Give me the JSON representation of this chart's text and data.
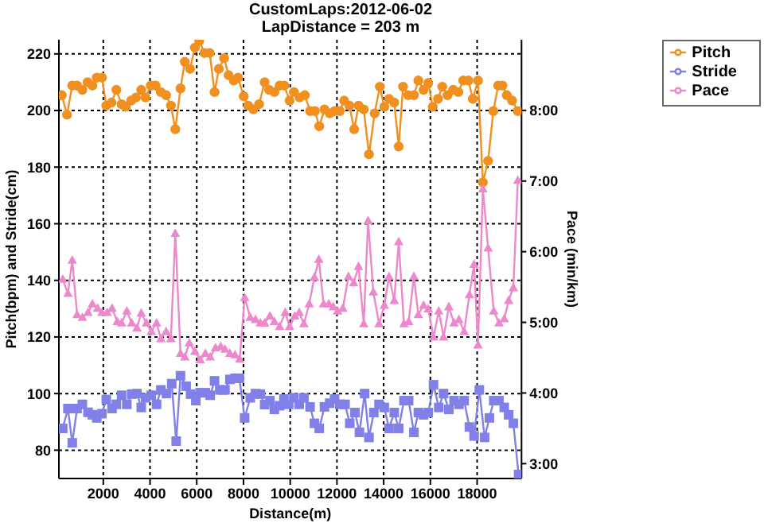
{
  "chart_data": {
    "type": "line",
    "title": "CustomLaps:2012-06-02",
    "subtitle": "LapDistance = 203 m",
    "xlabel": "Distance(m)",
    "ylabel": "Pitch(bpm) and Stride(cm)",
    "y2label": "Pace (min/km)",
    "xlim": [
      100,
      19900
    ],
    "xticks": [
      2000,
      4000,
      6000,
      8000,
      10000,
      12000,
      14000,
      16000,
      18000
    ],
    "ylim": [
      70,
      225
    ],
    "yticks": [
      80,
      100,
      120,
      140,
      160,
      180,
      200,
      220
    ],
    "y2lim": [
      2.79,
      9.0
    ],
    "y2ticks": [
      {
        "value": 3,
        "label": "3:00"
      },
      {
        "value": 4,
        "label": "4:00"
      },
      {
        "value": 5,
        "label": "5:00"
      },
      {
        "value": 6,
        "label": "6:00"
      },
      {
        "value": 7,
        "label": "7:00"
      },
      {
        "value": 8,
        "label": "8:00"
      }
    ],
    "grid": true,
    "legend": "top right",
    "series": [
      {
        "name": "Pitch",
        "color": "#f09020",
        "marker": "circle",
        "x": [
          224,
          448,
          672,
          880,
          1104,
          1328,
          1535,
          1720,
          1944,
          2129,
          2353,
          2560,
          2784,
          2969,
          3193,
          3400,
          3625,
          3809,
          4033,
          4241,
          4465,
          4689,
          4896,
          5081,
          5305,
          5490,
          5714,
          5921,
          6106,
          6330,
          6554,
          6762,
          6946,
          7171,
          7361,
          7585,
          7770,
          8011,
          8201,
          8425,
          8667,
          8907,
          9098,
          9322,
          9546,
          9748,
          9972,
          10162,
          10403,
          10627,
          10851,
          11058,
          11243,
          11467,
          11691,
          11899,
          12123,
          12308,
          12532,
          12739,
          12924,
          13148,
          13372,
          13613,
          13837,
          14027,
          14229,
          14453,
          14644,
          14829,
          15053,
          15294,
          15484,
          15709,
          15910,
          16100,
          16324,
          16509,
          16733,
          16974,
          17198,
          17405,
          17629,
          17814,
          18038,
          18246,
          18470,
          18694,
          18901,
          19086,
          19271,
          19495,
          19742
        ],
        "values": [
          205.4,
          198.5,
          208.8,
          208.8,
          207.3,
          210,
          208.8,
          211.6,
          211.6,
          201.7,
          202.8,
          207.3,
          202.2,
          201.3,
          203.5,
          204.6,
          207.3,
          204.6,
          208.8,
          208.8,
          206.5,
          205.4,
          201.7,
          193.4,
          207.8,
          217.2,
          214.7,
          222.2,
          224.6,
          220.3,
          220.3,
          206.5,
          214.7,
          218.5,
          212.5,
          210.6,
          211.6,
          205,
          201.7,
          200.4,
          202.2,
          210,
          207.3,
          206.5,
          208.8,
          208.8,
          203.5,
          206.5,
          204.6,
          205.4,
          199.8,
          199.8,
          194.4,
          200.4,
          199,
          199.8,
          199.8,
          203.5,
          201.7,
          193.4,
          201.7,
          200.4,
          184.5,
          199,
          208.4,
          201.3,
          204.1,
          202.8,
          187.3,
          208.4,
          205.4,
          205.4,
          210.6,
          207.3,
          209.7,
          201.3,
          204.1,
          208.4,
          205.4,
          207.3,
          206.5,
          210.6,
          210.6,
          204.1,
          210.6,
          174.6,
          182.2,
          199.8,
          208.8,
          208.8,
          205.4,
          203.5,
          199.8
        ]
      },
      {
        "name": "Stride",
        "color": "#8080e8",
        "marker": "square",
        "x": [
          263,
          487,
          672,
          880,
          1104,
          1345,
          1535,
          1720,
          1944,
          2129,
          2375,
          2560,
          2784,
          3008,
          3216,
          3440,
          3625,
          3809,
          4056,
          4280,
          4465,
          4706,
          4930,
          5120,
          5305,
          5546,
          5736,
          5961,
          6145,
          6370,
          6577,
          6762,
          6986,
          7210,
          7417,
          7641,
          7826,
          8050,
          8291,
          8515,
          8722,
          8907,
          9131,
          9322,
          9546,
          9731,
          9938,
          10162,
          10386,
          10588,
          10851,
          11036,
          11243,
          11467,
          11691,
          11899,
          12123,
          12347,
          12549,
          12773,
          12963,
          13187,
          13372,
          13579,
          13803,
          14027,
          14229,
          14453,
          14644,
          14868,
          15069,
          15294,
          15484,
          15709,
          15910,
          16134,
          16358,
          16565,
          16789,
          17013,
          17221,
          17445,
          17669,
          17870,
          18094,
          18319,
          18526,
          18711,
          18935,
          19159,
          19350,
          19551,
          19775
        ],
        "values": [
          87.7,
          94.7,
          82.6,
          94.7,
          96.2,
          93.4,
          92.5,
          91.4,
          92.9,
          97.9,
          94.7,
          96.2,
          99.4,
          96.2,
          99.8,
          100,
          95.1,
          98.5,
          99.4,
          96.2,
          101.3,
          100,
          103.5,
          83.2,
          106.3,
          102.6,
          99.8,
          97.5,
          100.3,
          100.3,
          99.4,
          104.5,
          101.3,
          101.3,
          105,
          105.4,
          105.4,
          91.4,
          98.5,
          100,
          99.8,
          96.1,
          97.5,
          94.4,
          95.7,
          98.1,
          96.2,
          98.5,
          96.2,
          98.5,
          95.3,
          89.5,
          87.7,
          95.3,
          96.6,
          98.1,
          96.2,
          96.2,
          89.5,
          93.3,
          86.3,
          100,
          84.5,
          93.3,
          96.2,
          95.1,
          87.7,
          93.3,
          87.7,
          97.5,
          97.5,
          86.3,
          93.3,
          92.5,
          93.3,
          103.1,
          95.1,
          100,
          94.4,
          97.5,
          96.2,
          97.5,
          88.2,
          85,
          101.3,
          84.5,
          91.4,
          97.5,
          97.5,
          95.1,
          92.5,
          89.5,
          71.4
        ]
      },
      {
        "name": "Pace",
        "color": "#ee88cc",
        "marker": "triangle",
        "axis": "y2",
        "x": [
          263,
          487,
          672,
          880,
          1104,
          1345,
          1535,
          1759,
          1944,
          2168,
          2375,
          2599,
          2784,
          3008,
          3216,
          3440,
          3625,
          3849,
          4056,
          4280,
          4465,
          4689,
          4896,
          5081,
          5305,
          5490,
          5680,
          5921,
          6145,
          6370,
          6577,
          6801,
          7025,
          7210,
          7417,
          7641,
          7840,
          8050,
          8291,
          8515,
          8722,
          8907,
          9131,
          9322,
          9546,
          9787,
          9972,
          10196,
          10386,
          10588,
          10812,
          11036,
          11226,
          11428,
          11652,
          11843,
          12028,
          12252,
          12493,
          12717,
          12924,
          13148,
          13333,
          13557,
          13803,
          14027,
          14229,
          14453,
          14644,
          14868,
          15069,
          15294,
          15484,
          15709,
          15910,
          16134,
          16358,
          16565,
          16789,
          17013,
          17221,
          17445,
          17669,
          17870,
          18038,
          18246,
          18470,
          18711,
          18935,
          19159,
          19350,
          19551,
          19742
        ],
        "values": [
          5.61,
          5.41,
          5.88,
          5.11,
          5.07,
          5.14,
          5.26,
          5.2,
          5.14,
          5.14,
          5.2,
          5.01,
          4.99,
          5.16,
          4.99,
          4.92,
          5.13,
          4.99,
          4.87,
          4.99,
          4.77,
          4.87,
          4.77,
          6.26,
          4.56,
          4.51,
          4.71,
          4.59,
          4.47,
          4.56,
          4.51,
          4.64,
          4.66,
          4.62,
          4.56,
          4.54,
          4.48,
          5.35,
          5.07,
          5.04,
          4.99,
          4.99,
          5.09,
          5.01,
          4.94,
          5.14,
          4.94,
          5.09,
          5.14,
          4.98,
          5.26,
          5.64,
          5.89,
          5.26,
          5.26,
          5.22,
          5.16,
          5.2,
          5.65,
          5.56,
          5.79,
          4.98,
          6.44,
          5.43,
          4.98,
          5.24,
          5.65,
          5.31,
          6.14,
          4.98,
          5.01,
          5.65,
          5.11,
          5.24,
          5.19,
          4.79,
          5.16,
          4.79,
          5.22,
          4.99,
          5.04,
          4.87,
          5.39,
          5.82,
          4.68,
          6.89,
          6.05,
          5.16,
          4.99,
          5.05,
          5.31,
          5.49,
          7.01
        ]
      }
    ]
  }
}
